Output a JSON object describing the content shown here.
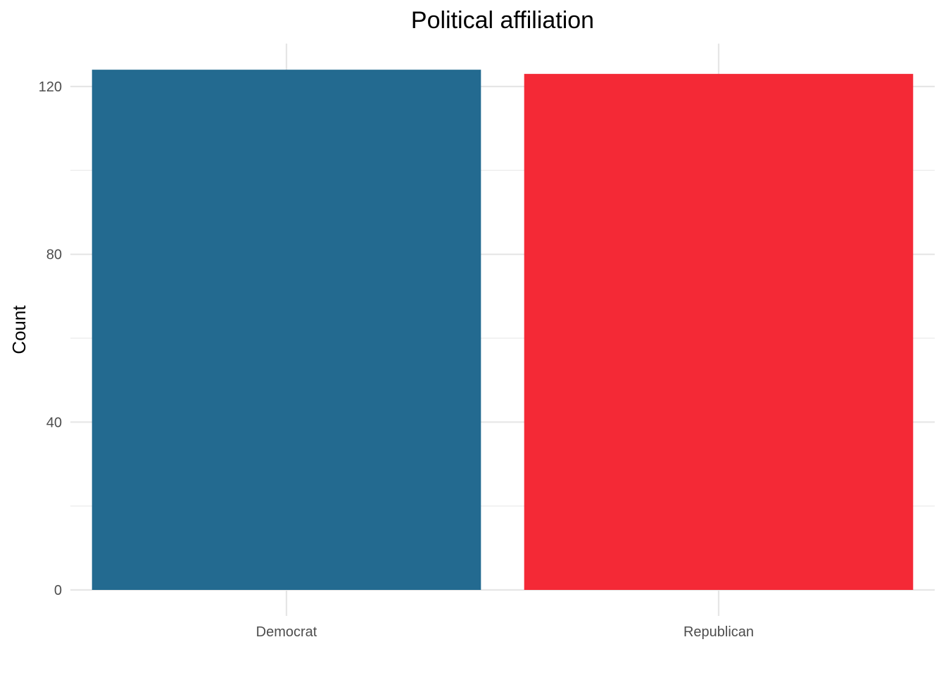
{
  "chart_data": {
    "type": "bar",
    "title": "Political affiliation",
    "xlabel": "",
    "ylabel": "Count",
    "categories": [
      "Democrat",
      "Republican"
    ],
    "values": [
      124,
      123
    ],
    "colors": [
      "#236A90",
      "#F42936"
    ],
    "ylim": [
      0,
      130
    ],
    "yticks": [
      0,
      40,
      80,
      120
    ],
    "ytick_labels": [
      "0",
      "40",
      "80",
      "120"
    ],
    "grid": true,
    "legend": "none"
  }
}
